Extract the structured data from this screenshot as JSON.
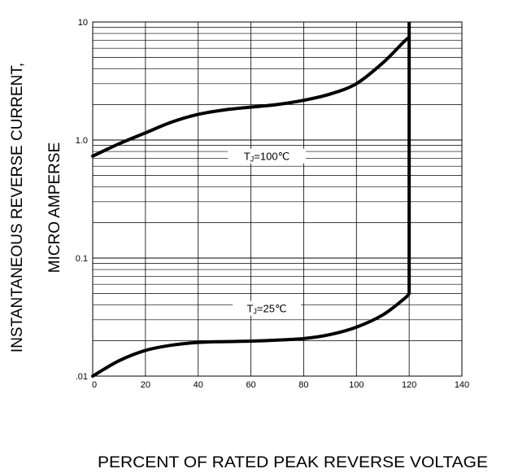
{
  "chart_data": {
    "type": "line",
    "title": "",
    "xlabel": "PERCENT OF RATED PEAK REVERSE VOLTAGE",
    "ylabel_line1": "INSTANTANEOUS REVERSE CURRENT,",
    "ylabel_line2": "MICRO AMPERSE",
    "xlim": [
      0,
      140
    ],
    "ylim": [
      0.01,
      10
    ],
    "yscale": "log",
    "grid": true,
    "x_ticks": [
      {
        "value": 0,
        "label": "0"
      },
      {
        "value": 20,
        "label": "20"
      },
      {
        "value": 40,
        "label": "40"
      },
      {
        "value": 60,
        "label": "60"
      },
      {
        "value": 80,
        "label": "80"
      },
      {
        "value": 100,
        "label": "100"
      },
      {
        "value": 120,
        "label": "120"
      },
      {
        "value": 140,
        "label": "140"
      }
    ],
    "y_ticks": [
      {
        "value": 10,
        "label": "10"
      },
      {
        "value": 1,
        "label": "1.0"
      },
      {
        "value": 0.1,
        "label": "0.1"
      },
      {
        "value": 0.01,
        "label": ".01"
      }
    ],
    "series": [
      {
        "name": "TJ=100℃",
        "label_main": "T",
        "label_sub": "J",
        "label_rest": "=100℃",
        "label_at": {
          "x": 66,
          "y": 0.72
        },
        "x": [
          0,
          10,
          20,
          30,
          40,
          50,
          60,
          70,
          80,
          90,
          100,
          110,
          118,
          120
        ],
        "y": [
          0.73,
          0.93,
          1.15,
          1.42,
          1.65,
          1.8,
          1.9,
          2.0,
          2.17,
          2.45,
          3.0,
          4.5,
          6.8,
          7.4
        ]
      },
      {
        "name": "TJ=25℃",
        "label_main": "T",
        "label_sub": "J",
        "label_rest": "=25℃",
        "label_at": {
          "x": 66,
          "y": 0.037
        },
        "x": [
          0,
          10,
          20,
          30,
          40,
          50,
          60,
          70,
          80,
          90,
          100,
          110,
          118,
          120
        ],
        "y": [
          0.01,
          0.0135,
          0.0165,
          0.0183,
          0.0193,
          0.0196,
          0.0198,
          0.0202,
          0.0208,
          0.0225,
          0.026,
          0.033,
          0.045,
          0.05
        ]
      }
    ],
    "vertical_line": {
      "x": 120,
      "y_from": 0.05,
      "y_to": 10
    }
  },
  "style": {
    "curve_color": "#000000",
    "grid_color": "#000000",
    "background": "#ffffff"
  }
}
